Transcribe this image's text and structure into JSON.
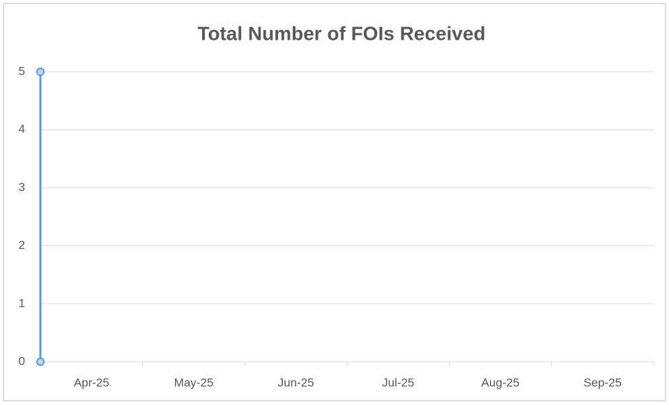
{
  "chart_data": {
    "type": "line",
    "title": "Total Number of FOIs Received",
    "categories": [
      "Apr-25",
      "May-25",
      "Jun-25",
      "Jul-25",
      "Aug-25",
      "Sep-25"
    ],
    "series": [
      {
        "color": "#5b9bd5",
        "x": [
          0,
          0
        ],
        "values": [
          0,
          5
        ]
      }
    ],
    "xlim": [
      0,
      6
    ],
    "ylim": [
      0,
      5
    ],
    "yticks": [
      0,
      1,
      2,
      3,
      4,
      5
    ],
    "grid": true
  }
}
